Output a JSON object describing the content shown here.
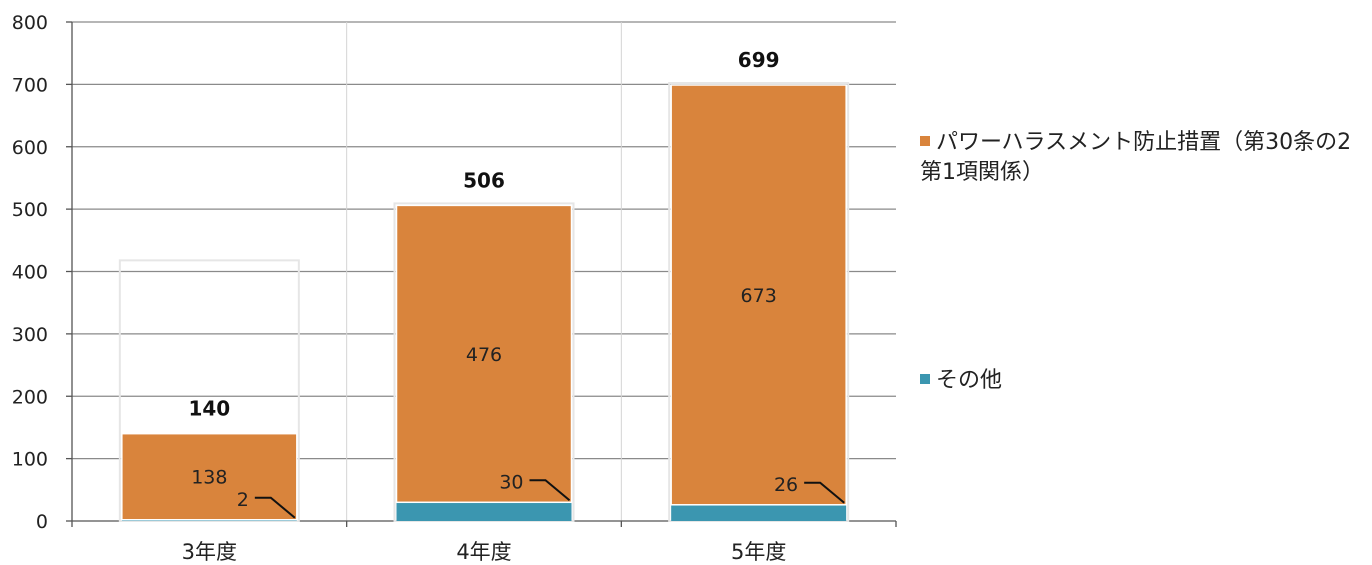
{
  "chart_data": {
    "type": "bar",
    "stacked": true,
    "categories": [
      "3年度",
      "4年度",
      "5年度"
    ],
    "series": [
      {
        "name": "その他",
        "values": [
          2,
          30,
          26
        ],
        "color": "#3b96b0"
      },
      {
        "name": "パワーハラスメント防止措置（第30条の2第1項関係）",
        "values": [
          138,
          476,
          673
        ],
        "color": "#d9843c"
      }
    ],
    "totals": [
      140,
      506,
      699
    ],
    "ylim": [
      0,
      800
    ],
    "yticks": [
      0,
      100,
      200,
      300,
      400,
      500,
      600,
      700,
      800
    ],
    "grid": true,
    "legend_position": "right",
    "title": "",
    "xlabel": "",
    "ylabel": ""
  }
}
